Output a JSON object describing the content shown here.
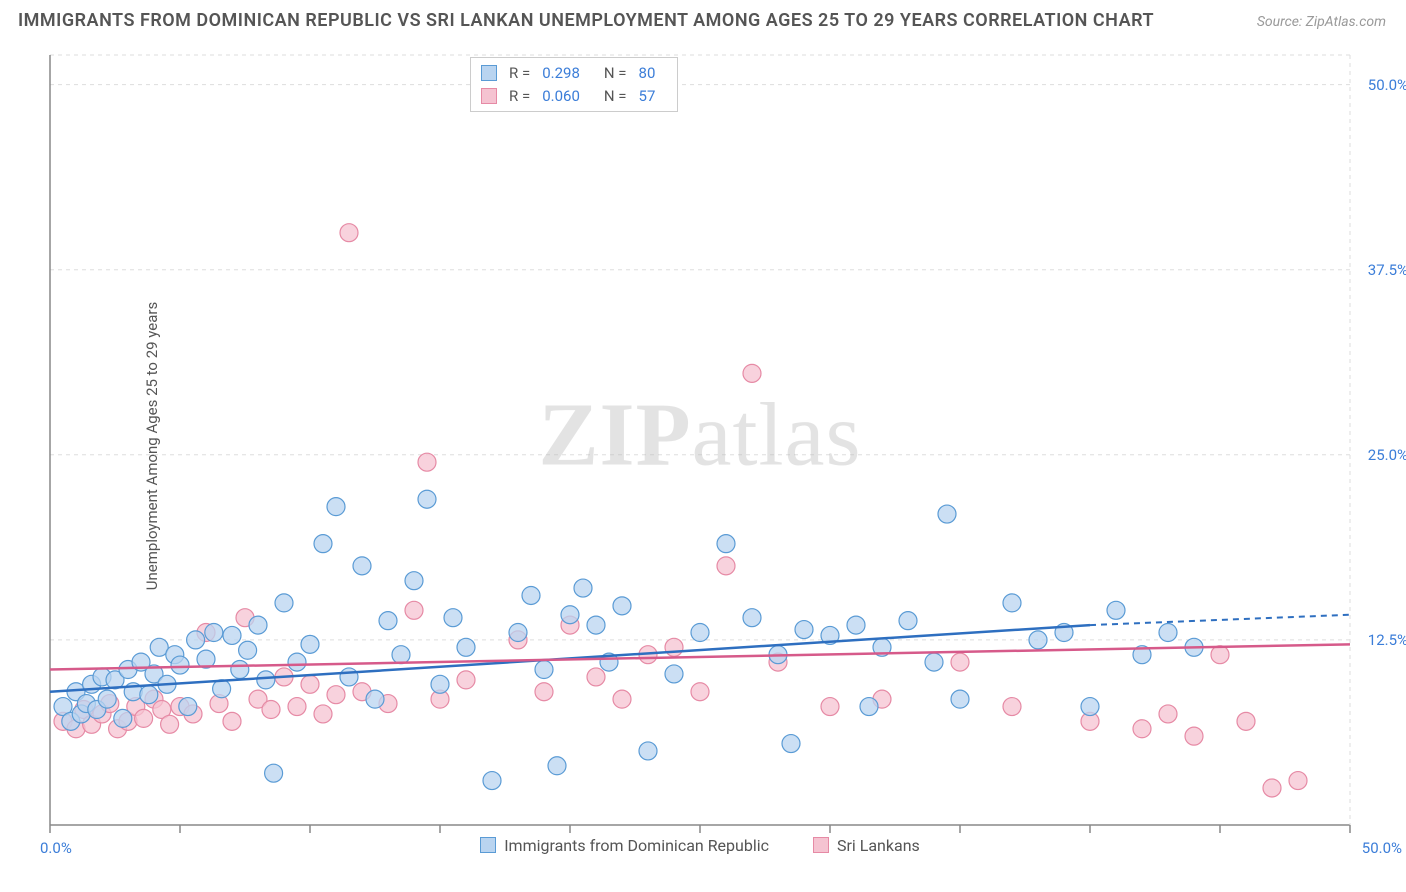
{
  "title": "IMMIGRANTS FROM DOMINICAN REPUBLIC VS SRI LANKAN UNEMPLOYMENT AMONG AGES 25 TO 29 YEARS CORRELATION CHART",
  "source": "Source: ZipAtlas.com",
  "y_axis_label": "Unemployment Among Ages 25 to 29 years",
  "watermark_bold": "ZIP",
  "watermark_light": "atlas",
  "chart": {
    "type": "scatter",
    "xlim": [
      0,
      50
    ],
    "ylim": [
      0,
      52
    ],
    "x_tick_positions": [
      0,
      5,
      10,
      15,
      20,
      25,
      30,
      35,
      40,
      45,
      50
    ],
    "y_ticks": [
      {
        "v": 12.5,
        "label": "12.5%"
      },
      {
        "v": 25.0,
        "label": "25.0%"
      },
      {
        "v": 37.5,
        "label": "37.5%"
      },
      {
        "v": 50.0,
        "label": "50.0%"
      }
    ],
    "x_label_0": "0.0%",
    "x_label_50": "50.0%",
    "grid_color": "#dddddd",
    "axis_color": "#888888",
    "background_color": "#ffffff",
    "marker_radius": 9,
    "marker_stroke_width": 1.2,
    "series": [
      {
        "name": "Immigrants from Dominican Republic",
        "fill": "#b9d4f0",
        "stroke": "#5a9bd5",
        "line_color": "#2e6fc0",
        "R_label": "R =",
        "R": "0.298",
        "N_label": "N =",
        "N": "80",
        "regression": {
          "x1": 0,
          "y1": 9.0,
          "x2_solid": 40,
          "y2_solid": 13.5,
          "x2": 50,
          "y2": 14.2
        },
        "points": [
          [
            0.5,
            8.0
          ],
          [
            0.8,
            7.0
          ],
          [
            1.0,
            9.0
          ],
          [
            1.2,
            7.5
          ],
          [
            1.4,
            8.2
          ],
          [
            1.6,
            9.5
          ],
          [
            1.8,
            7.8
          ],
          [
            2.0,
            10.0
          ],
          [
            2.2,
            8.5
          ],
          [
            2.5,
            9.8
          ],
          [
            2.8,
            7.2
          ],
          [
            3.0,
            10.5
          ],
          [
            3.2,
            9.0
          ],
          [
            3.5,
            11.0
          ],
          [
            3.8,
            8.8
          ],
          [
            4.0,
            10.2
          ],
          [
            4.2,
            12.0
          ],
          [
            4.5,
            9.5
          ],
          [
            4.8,
            11.5
          ],
          [
            5.0,
            10.8
          ],
          [
            5.3,
            8.0
          ],
          [
            5.6,
            12.5
          ],
          [
            6.0,
            11.2
          ],
          [
            6.3,
            13.0
          ],
          [
            6.6,
            9.2
          ],
          [
            7.0,
            12.8
          ],
          [
            7.3,
            10.5
          ],
          [
            7.6,
            11.8
          ],
          [
            8.0,
            13.5
          ],
          [
            8.3,
            9.8
          ],
          [
            8.6,
            3.5
          ],
          [
            9.0,
            15.0
          ],
          [
            9.5,
            11.0
          ],
          [
            10.0,
            12.2
          ],
          [
            10.5,
            19.0
          ],
          [
            11.0,
            21.5
          ],
          [
            11.5,
            10.0
          ],
          [
            12.0,
            17.5
          ],
          [
            12.5,
            8.5
          ],
          [
            13.0,
            13.8
          ],
          [
            13.5,
            11.5
          ],
          [
            14.0,
            16.5
          ],
          [
            14.5,
            22.0
          ],
          [
            15.0,
            9.5
          ],
          [
            15.5,
            14.0
          ],
          [
            16.0,
            12.0
          ],
          [
            17.0,
            3.0
          ],
          [
            18.0,
            13.0
          ],
          [
            18.5,
            15.5
          ],
          [
            19.0,
            10.5
          ],
          [
            19.5,
            4.0
          ],
          [
            20.0,
            14.2
          ],
          [
            20.5,
            16.0
          ],
          [
            21.0,
            13.5
          ],
          [
            21.5,
            11.0
          ],
          [
            22.0,
            14.8
          ],
          [
            23.0,
            5.0
          ],
          [
            24.0,
            10.2
          ],
          [
            25.0,
            13.0
          ],
          [
            26.0,
            19.0
          ],
          [
            27.0,
            14.0
          ],
          [
            28.0,
            11.5
          ],
          [
            28.5,
            5.5
          ],
          [
            29.0,
            13.2
          ],
          [
            30.0,
            12.8
          ],
          [
            31.0,
            13.5
          ],
          [
            31.5,
            8.0
          ],
          [
            32.0,
            12.0
          ],
          [
            33.0,
            13.8
          ],
          [
            34.0,
            11.0
          ],
          [
            34.5,
            21.0
          ],
          [
            35.0,
            8.5
          ],
          [
            37.0,
            15.0
          ],
          [
            38.0,
            12.5
          ],
          [
            39.0,
            13.0
          ],
          [
            40.0,
            8.0
          ],
          [
            41.0,
            14.5
          ],
          [
            42.0,
            11.5
          ],
          [
            43.0,
            13.0
          ],
          [
            44.0,
            12.0
          ]
        ]
      },
      {
        "name": "Sri Lankans",
        "fill": "#f5c3d1",
        "stroke": "#e68aa5",
        "line_color": "#d65a8a",
        "R_label": "R =",
        "R": "0.060",
        "N_label": "N =",
        "N": "57",
        "regression": {
          "x1": 0,
          "y1": 10.5,
          "x2_solid": 50,
          "y2_solid": 12.2,
          "x2": 50,
          "y2": 12.2
        },
        "points": [
          [
            0.5,
            7.0
          ],
          [
            1.0,
            6.5
          ],
          [
            1.3,
            7.8
          ],
          [
            1.6,
            6.8
          ],
          [
            2.0,
            7.5
          ],
          [
            2.3,
            8.2
          ],
          [
            2.6,
            6.5
          ],
          [
            3.0,
            7.0
          ],
          [
            3.3,
            8.0
          ],
          [
            3.6,
            7.2
          ],
          [
            4.0,
            8.5
          ],
          [
            4.3,
            7.8
          ],
          [
            4.6,
            6.8
          ],
          [
            5.0,
            8.0
          ],
          [
            5.5,
            7.5
          ],
          [
            6.0,
            13.0
          ],
          [
            6.5,
            8.2
          ],
          [
            7.0,
            7.0
          ],
          [
            7.5,
            14.0
          ],
          [
            8.0,
            8.5
          ],
          [
            8.5,
            7.8
          ],
          [
            9.0,
            10.0
          ],
          [
            9.5,
            8.0
          ],
          [
            10.0,
            9.5
          ],
          [
            10.5,
            7.5
          ],
          [
            11.0,
            8.8
          ],
          [
            11.5,
            40.0
          ],
          [
            12.0,
            9.0
          ],
          [
            13.0,
            8.2
          ],
          [
            14.0,
            14.5
          ],
          [
            14.5,
            24.5
          ],
          [
            15.0,
            8.5
          ],
          [
            16.0,
            9.8
          ],
          [
            17.0,
            51.0
          ],
          [
            18.0,
            12.5
          ],
          [
            19.0,
            9.0
          ],
          [
            20.0,
            13.5
          ],
          [
            21.0,
            10.0
          ],
          [
            22.0,
            8.5
          ],
          [
            23.0,
            11.5
          ],
          [
            24.0,
            12.0
          ],
          [
            25.0,
            9.0
          ],
          [
            26.0,
            17.5
          ],
          [
            27.0,
            30.5
          ],
          [
            28.0,
            11.0
          ],
          [
            30.0,
            8.0
          ],
          [
            32.0,
            8.5
          ],
          [
            35.0,
            11.0
          ],
          [
            37.0,
            8.0
          ],
          [
            40.0,
            7.0
          ],
          [
            42.0,
            6.5
          ],
          [
            43.0,
            7.5
          ],
          [
            44.0,
            6.0
          ],
          [
            45.0,
            11.5
          ],
          [
            46.0,
            7.0
          ],
          [
            47.0,
            2.5
          ],
          [
            48.0,
            3.0
          ]
        ]
      }
    ]
  },
  "legend_bottom": [
    {
      "label": "Immigrants from Dominican Republic",
      "fill": "#b9d4f0",
      "stroke": "#5a9bd5"
    },
    {
      "label": "Sri Lankans",
      "fill": "#f5c3d1",
      "stroke": "#e68aa5"
    }
  ]
}
